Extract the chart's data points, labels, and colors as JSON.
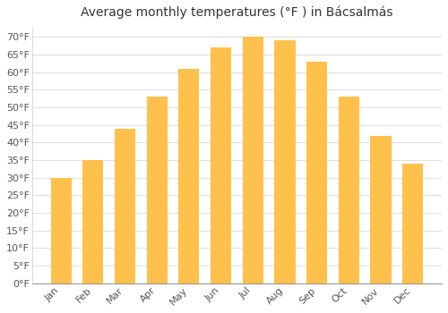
{
  "title": "Average monthly temperatures (°F ) in Bácsalmás",
  "months": [
    "Jan",
    "Feb",
    "Mar",
    "Apr",
    "May",
    "Jun",
    "Jul",
    "Aug",
    "Sep",
    "Oct",
    "Nov",
    "Dec"
  ],
  "values": [
    30,
    35,
    44,
    53,
    61,
    67,
    70,
    69,
    63,
    53,
    42,
    34
  ],
  "bar_color_top": "#FFC04C",
  "bar_color_bottom": "#FFB020",
  "background_color": "#FFFFFF",
  "grid_color": "#E0E0E0",
  "text_color": "#555555",
  "ylim": [
    0,
    73
  ],
  "yticks": [
    0,
    5,
    10,
    15,
    20,
    25,
    30,
    35,
    40,
    45,
    50,
    55,
    60,
    65,
    70
  ],
  "ylabel_suffix": "°F",
  "title_fontsize": 10,
  "tick_fontsize": 8
}
